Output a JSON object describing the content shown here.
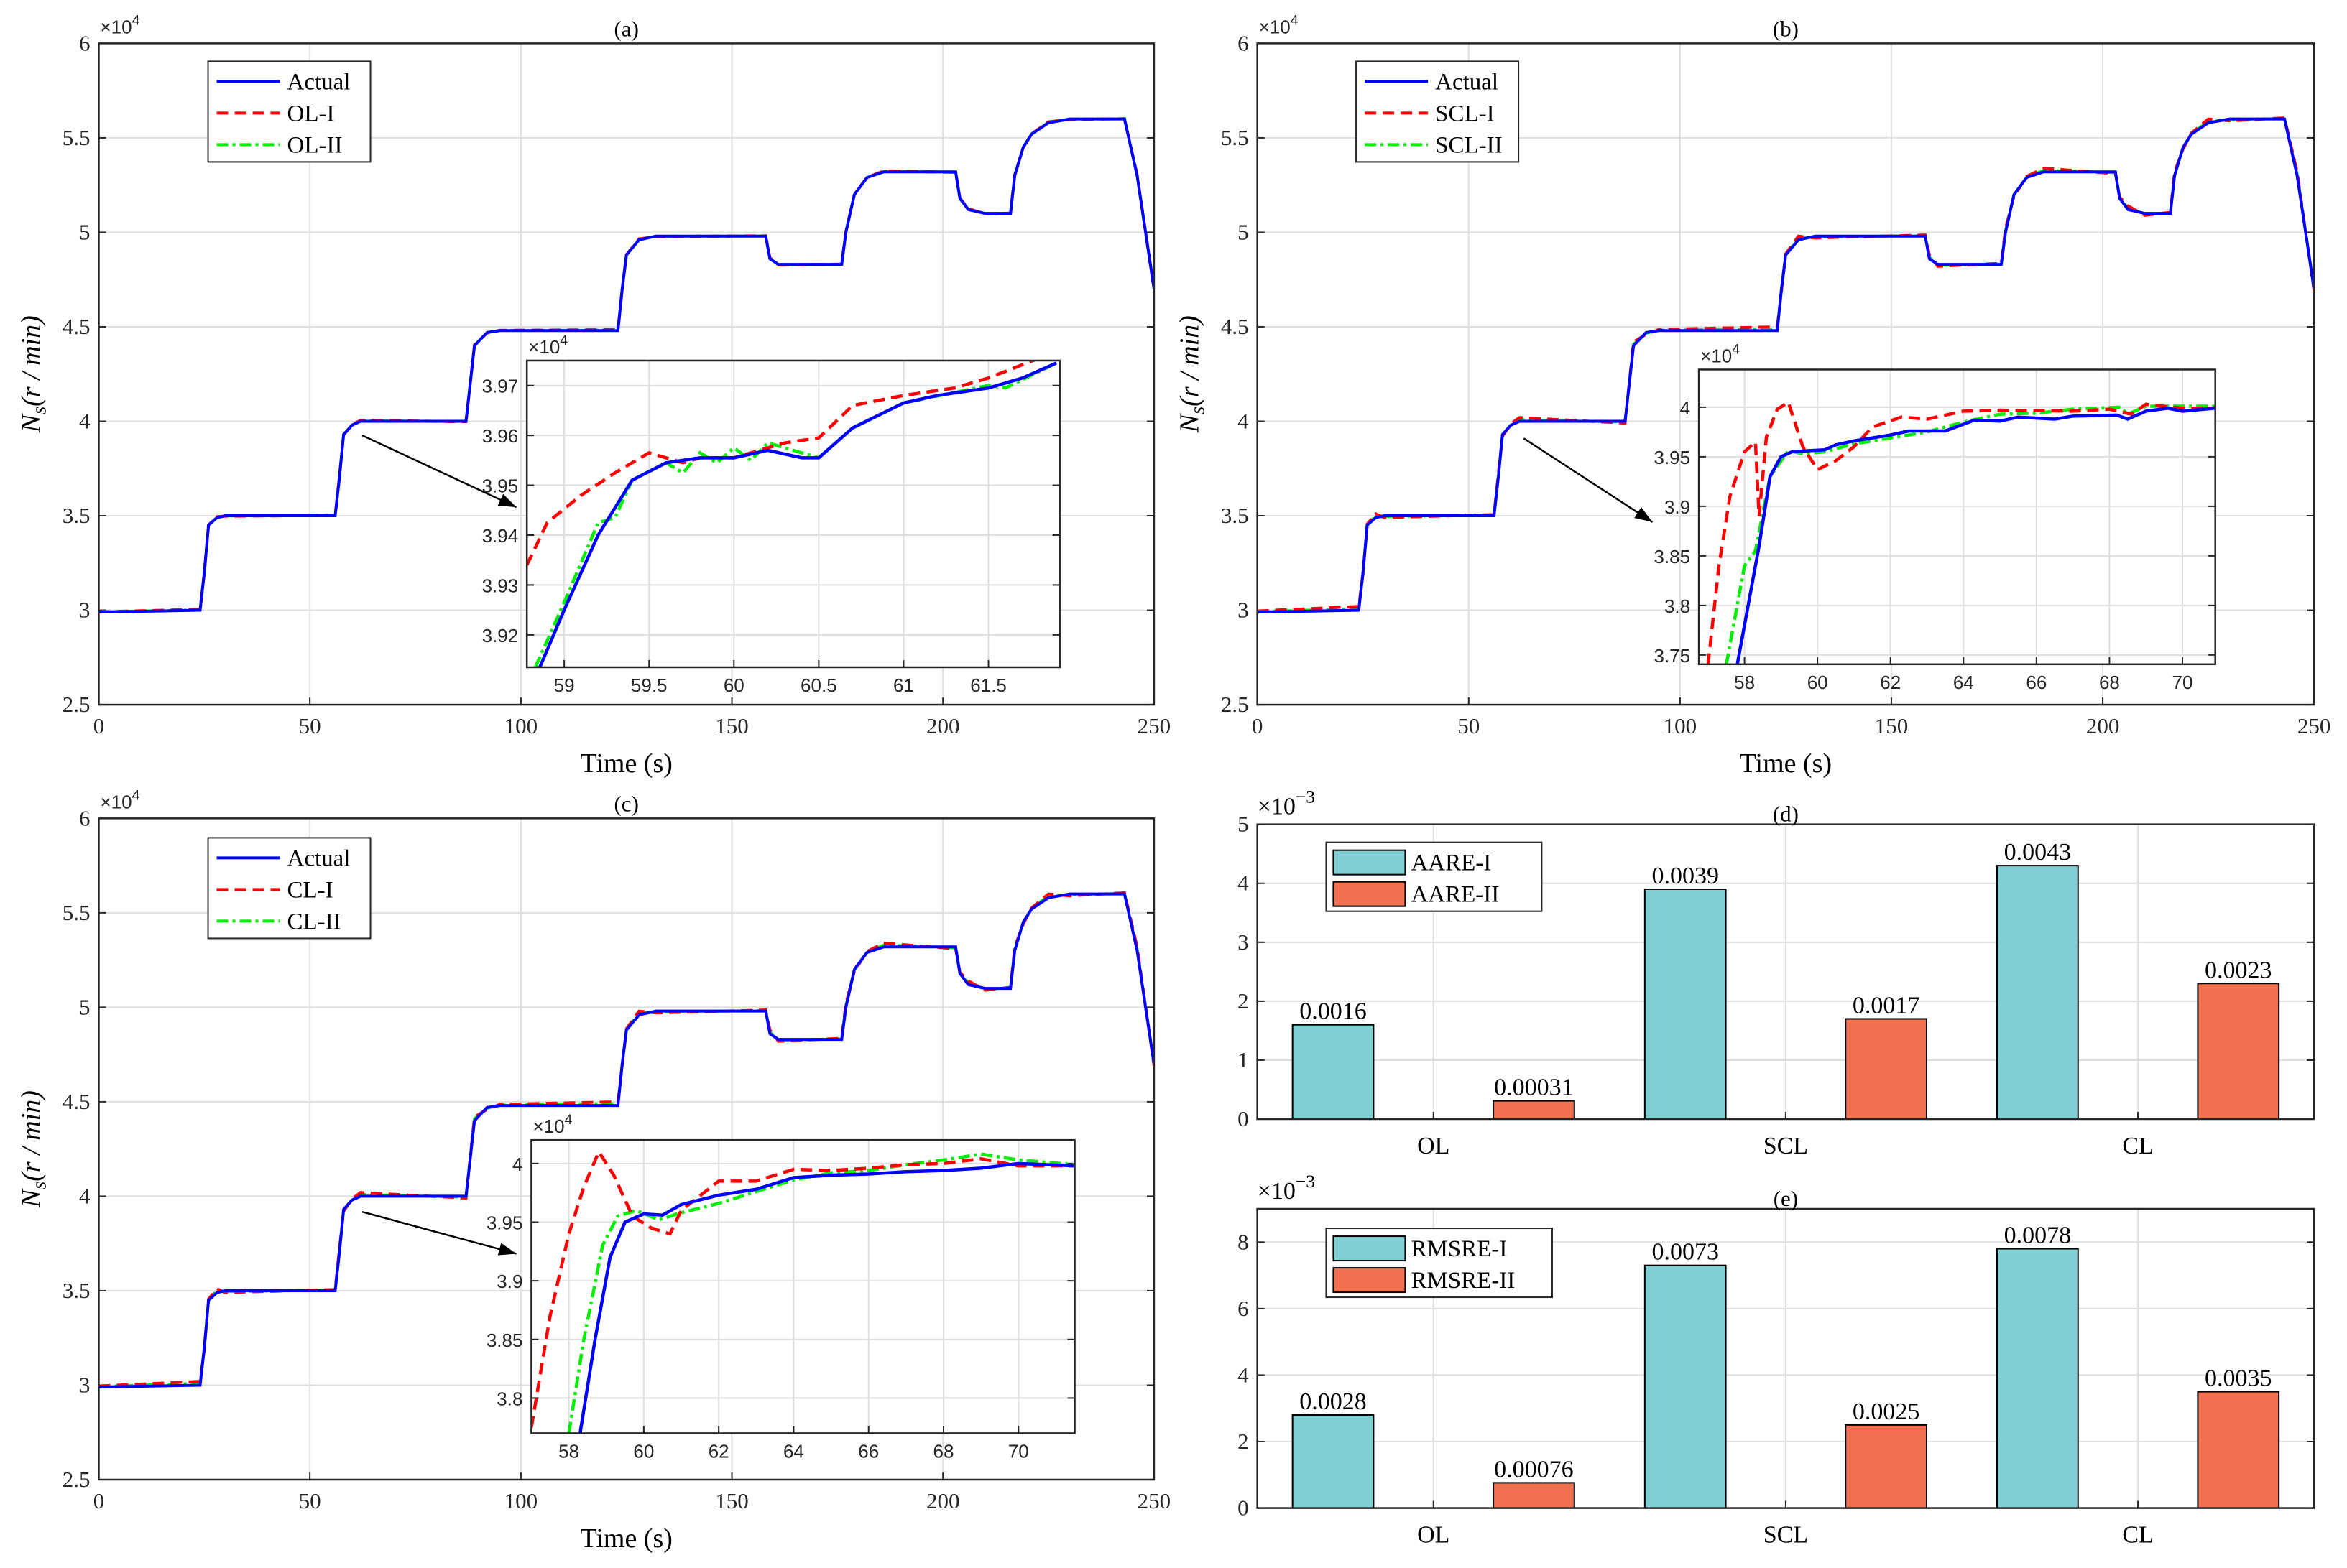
{
  "chart_data": [
    {
      "type": "line",
      "title": "(a)",
      "xlabel": "Time (s)",
      "ylabel_main": "N",
      "ylabel_sub": "s",
      "ylabel_unit": "(r / min)",
      "exponent": "×10",
      "exponent_power": "4",
      "xlim": [
        0,
        250
      ],
      "ylim": [
        2.5,
        6
      ],
      "xticks": [
        0,
        50,
        100,
        150,
        200,
        250
      ],
      "yticks": [
        2.5,
        3,
        3.5,
        4,
        4.5,
        5,
        5.5,
        6
      ],
      "grid": true,
      "legend": "top-left",
      "series": [
        {
          "name": "Actual",
          "style": "solid",
          "color": "#0000ff",
          "offset": 0
        },
        {
          "name": "OL-I",
          "style": "dashed",
          "color": "#ff0000",
          "offset": 0.005
        },
        {
          "name": "OL-II",
          "style": "dashdot",
          "color": "#00ee00",
          "offset": 0.002
        }
      ],
      "inset": {
        "exponent": "×10",
        "exponent_power": "4",
        "xlim": [
          58.78,
          61.92
        ],
        "ylim": [
          3.9135,
          3.975
        ],
        "xticks": [
          59,
          59.5,
          60,
          60.5,
          61,
          61.5
        ],
        "yticks": [
          3.92,
          3.93,
          3.94,
          3.95,
          3.96,
          3.97
        ],
        "series": [
          {
            "name": "Actual",
            "points": [
              [
                58.85,
                3.913
              ],
              [
                59,
                3.925
              ],
              [
                59.2,
                3.94
              ],
              [
                59.4,
                3.951
              ],
              [
                59.6,
                3.9545
              ],
              [
                59.8,
                3.9555
              ],
              [
                60,
                3.9555
              ],
              [
                60.2,
                3.957
              ],
              [
                60.4,
                3.9555
              ],
              [
                60.5,
                3.9555
              ],
              [
                60.7,
                3.9615
              ],
              [
                61,
                3.9665
              ],
              [
                61.2,
                3.968
              ],
              [
                61.5,
                3.9695
              ],
              [
                61.7,
                3.9715
              ],
              [
                61.9,
                3.9745
              ]
            ]
          },
          {
            "name": "OL-I",
            "points": [
              [
                58.78,
                3.934
              ],
              [
                58.9,
                3.9425
              ],
              [
                59.1,
                3.948
              ],
              [
                59.3,
                3.9525
              ],
              [
                59.5,
                3.9565
              ],
              [
                59.7,
                3.9545
              ],
              [
                59.8,
                3.9555
              ],
              [
                60,
                3.9555
              ],
              [
                60.3,
                3.9585
              ],
              [
                60.5,
                3.9595
              ],
              [
                60.7,
                3.966
              ],
              [
                61,
                3.968
              ],
              [
                61.3,
                3.9695
              ],
              [
                61.5,
                3.9715
              ],
              [
                61.8,
                3.9755
              ]
            ]
          },
          {
            "name": "OL-II",
            "points": [
              [
                58.83,
                3.9135
              ],
              [
                59,
                3.9265
              ],
              [
                59.2,
                3.9425
              ],
              [
                59.3,
                3.9435
              ],
              [
                59.4,
                3.951
              ],
              [
                59.6,
                3.9545
              ],
              [
                59.7,
                3.9525
              ],
              [
                59.8,
                3.9565
              ],
              [
                59.9,
                3.9545
              ],
              [
                60,
                3.9575
              ],
              [
                60.1,
                3.955
              ],
              [
                60.2,
                3.9585
              ],
              [
                60.3,
                3.9575
              ],
              [
                60.5,
                3.9555
              ],
              [
                60.7,
                3.9615
              ],
              [
                61,
                3.9665
              ],
              [
                61.5,
                3.97
              ],
              [
                61.6,
                3.9695
              ],
              [
                61.9,
                3.9745
              ]
            ]
          }
        ]
      }
    },
    {
      "type": "line",
      "title": "(b)",
      "xlabel": "Time (s)",
      "ylabel_main": "N",
      "ylabel_sub": "s",
      "ylabel_unit": "(r / min)",
      "exponent": "×10",
      "exponent_power": "4",
      "xlim": [
        0,
        250
      ],
      "ylim": [
        2.5,
        6
      ],
      "xticks": [
        0,
        50,
        100,
        150,
        200,
        250
      ],
      "yticks": [
        2.5,
        3,
        3.5,
        4,
        4.5,
        5,
        5.5,
        6
      ],
      "grid": true,
      "legend": "top-left",
      "series": [
        {
          "name": "Actual",
          "style": "solid",
          "color": "#0000ff",
          "offset": 0
        },
        {
          "name": "SCL-I",
          "style": "dashed",
          "color": "#ff0000",
          "offset": 0.02
        },
        {
          "name": "SCL-II",
          "style": "dashdot",
          "color": "#00ee00",
          "offset": 0.008
        }
      ],
      "inset": {
        "exponent": "×10",
        "exponent_power": "4",
        "xlim": [
          56.75,
          70.9
        ],
        "ylim": [
          3.7406,
          4.038
        ],
        "xticks": [
          58,
          60,
          62,
          64,
          66,
          68,
          70
        ],
        "yticks": [
          3.75,
          3.8,
          3.85,
          3.9,
          3.95,
          4
        ],
        "series": [
          {
            "name": "Actual",
            "points": [
              [
                57.8,
                3.74
              ],
              [
                58.1,
                3.8
              ],
              [
                58.4,
                3.86
              ],
              [
                58.7,
                3.93
              ],
              [
                59,
                3.95
              ],
              [
                59.3,
                3.955
              ],
              [
                59.7,
                3.956
              ],
              [
                60.2,
                3.957
              ],
              [
                60.5,
                3.962
              ],
              [
                61,
                3.966
              ],
              [
                62,
                3.972
              ],
              [
                62.5,
                3.976
              ],
              [
                63.5,
                3.976
              ],
              [
                64.3,
                3.987
              ],
              [
                65,
                3.986
              ],
              [
                65.5,
                3.99
              ],
              [
                66.5,
                3.988
              ],
              [
                67,
                3.991
              ],
              [
                68.2,
                3.992
              ],
              [
                68.5,
                3.988
              ],
              [
                69,
                3.996
              ],
              [
                69.6,
                3.999
              ],
              [
                70,
                3.996
              ],
              [
                70.9,
                3.999
              ]
            ]
          },
          {
            "name": "SCL-I",
            "points": [
              [
                57,
                3.74
              ],
              [
                57.3,
                3.84
              ],
              [
                57.6,
                3.91
              ],
              [
                58,
                3.955
              ],
              [
                58.3,
                3.965
              ],
              [
                58.4,
                3.89
              ],
              [
                58.6,
                3.97
              ],
              [
                58.9,
                3.998
              ],
              [
                59.2,
                4.005
              ],
              [
                59.6,
                3.96
              ],
              [
                60,
                3.937
              ],
              [
                60.5,
                3.946
              ],
              [
                61,
                3.96
              ],
              [
                61.5,
                3.98
              ],
              [
                62.3,
                3.99
              ],
              [
                63,
                3.988
              ],
              [
                64,
                3.996
              ],
              [
                65,
                3.997
              ],
              [
                67,
                3.996
              ],
              [
                68,
                3.998
              ],
              [
                68.6,
                3.993
              ],
              [
                69,
                4.003
              ],
              [
                70,
                3.999
              ],
              [
                70.9,
                3.999
              ]
            ]
          },
          {
            "name": "SCL-II",
            "points": [
              [
                57.5,
                3.74
              ],
              [
                58,
                3.84
              ],
              [
                58.3,
                3.855
              ],
              [
                58.7,
                3.93
              ],
              [
                59.2,
                3.956
              ],
              [
                59.6,
                3.953
              ],
              [
                60.2,
                3.955
              ],
              [
                61,
                3.963
              ],
              [
                62,
                3.969
              ],
              [
                63,
                3.975
              ],
              [
                64,
                3.985
              ],
              [
                65,
                3.993
              ],
              [
                66,
                3.994
              ],
              [
                67,
                3.998
              ],
              [
                68.3,
                4.0
              ],
              [
                68.5,
                3.993
              ],
              [
                69,
                4.001
              ],
              [
                70.9,
                4.001
              ]
            ]
          }
        ]
      }
    },
    {
      "type": "line",
      "title": "(c)",
      "xlabel": "Time (s)",
      "ylabel_main": "N",
      "ylabel_sub": "s",
      "ylabel_unit": "(r / min)",
      "exponent": "×10",
      "exponent_power": "4",
      "xlim": [
        0,
        250
      ],
      "ylim": [
        2.5,
        6
      ],
      "xticks": [
        0,
        50,
        100,
        150,
        200,
        250
      ],
      "yticks": [
        2.5,
        3,
        3.5,
        4,
        4.5,
        5,
        5.5,
        6
      ],
      "grid": true,
      "legend": "top-left",
      "series": [
        {
          "name": "Actual",
          "style": "solid",
          "color": "#0000ff",
          "offset": 0
        },
        {
          "name": "CL-I",
          "style": "dashed",
          "color": "#ff0000",
          "offset": 0.02
        },
        {
          "name": "CL-II",
          "style": "dashdot",
          "color": "#00ee00",
          "offset": 0.01
        }
      ],
      "inset": {
        "exponent": "×10",
        "exponent_power": "4",
        "xlim": [
          57,
          71.5
        ],
        "ylim": [
          3.77,
          4.02
        ],
        "xticks": [
          58,
          60,
          62,
          64,
          66,
          68,
          70
        ],
        "yticks": [
          3.8,
          3.85,
          3.9,
          3.95,
          4
        ],
        "series": [
          {
            "name": "Actual",
            "points": [
              [
                58.3,
                3.77
              ],
              [
                58.7,
                3.85
              ],
              [
                59.1,
                3.92
              ],
              [
                59.5,
                3.95
              ],
              [
                60,
                3.957
              ],
              [
                60.5,
                3.956
              ],
              [
                61,
                3.965
              ],
              [
                62,
                3.973
              ],
              [
                63,
                3.978
              ],
              [
                64,
                3.988
              ],
              [
                65,
                3.99
              ],
              [
                66,
                3.991
              ],
              [
                67,
                3.993
              ],
              [
                68,
                3.994
              ],
              [
                69,
                3.996
              ],
              [
                70,
                4.0
              ],
              [
                71.5,
                3.998
              ]
            ]
          },
          {
            "name": "CL-I",
            "points": [
              [
                57,
                3.775
              ],
              [
                57.5,
                3.87
              ],
              [
                58,
                3.94
              ],
              [
                58.4,
                3.98
              ],
              [
                58.8,
                4.01
              ],
              [
                59.2,
                3.99
              ],
              [
                59.7,
                3.955
              ],
              [
                60.2,
                3.945
              ],
              [
                60.7,
                3.94
              ],
              [
                61,
                3.96
              ],
              [
                62,
                3.985
              ],
              [
                63,
                3.985
              ],
              [
                64,
                3.995
              ],
              [
                65,
                3.994
              ],
              [
                66,
                3.996
              ],
              [
                67,
                3.999
              ],
              [
                68,
                4.0
              ],
              [
                69,
                4.004
              ],
              [
                70,
                3.998
              ],
              [
                71.5,
                3.998
              ]
            ]
          },
          {
            "name": "CL-II",
            "points": [
              [
                58,
                3.77
              ],
              [
                58.4,
                3.85
              ],
              [
                58.9,
                3.93
              ],
              [
                59.3,
                3.955
              ],
              [
                59.8,
                3.96
              ],
              [
                60.4,
                3.952
              ],
              [
                61,
                3.958
              ],
              [
                62,
                3.966
              ],
              [
                63,
                3.976
              ],
              [
                64,
                3.986
              ],
              [
                65,
                3.992
              ],
              [
                66,
                3.994
              ],
              [
                67,
                3.999
              ],
              [
                68,
                4.003
              ],
              [
                69,
                4.008
              ],
              [
                70,
                4.003
              ],
              [
                71.5,
                3.999
              ]
            ]
          }
        ]
      }
    },
    {
      "type": "bar",
      "title": "(d)",
      "exponent": "×10",
      "exponent_power": "−3",
      "categories": [
        "OL",
        "SCL",
        "CL"
      ],
      "ylim": [
        0,
        5
      ],
      "yticks": [
        0,
        1,
        2,
        3,
        4,
        5
      ],
      "scale": 1000,
      "grid": true,
      "legend": "top-left",
      "series": [
        {
          "name": "AARE-I",
          "color": "#80d0d3",
          "values": [
            0.0016,
            0.0039,
            0.0043
          ]
        },
        {
          "name": "AARE-II",
          "color": "#f07050",
          "values": [
            0.00031,
            0.0017,
            0.0023
          ]
        }
      ]
    },
    {
      "type": "bar",
      "title": "(e)",
      "exponent": "×10",
      "exponent_power": "−3",
      "categories": [
        "OL",
        "SCL",
        "CL"
      ],
      "ylim": [
        0,
        9
      ],
      "yticks": [
        0,
        2,
        4,
        6,
        8
      ],
      "scale": 1000,
      "grid": true,
      "legend": "top-left",
      "series": [
        {
          "name": "RMSRE-I",
          "color": "#80d0d3",
          "values": [
            0.0028,
            0.0073,
            0.0078
          ]
        },
        {
          "name": "RMSRE-II",
          "color": "#f07050",
          "values": [
            0.00076,
            0.0025,
            0.0035
          ]
        }
      ]
    }
  ]
}
